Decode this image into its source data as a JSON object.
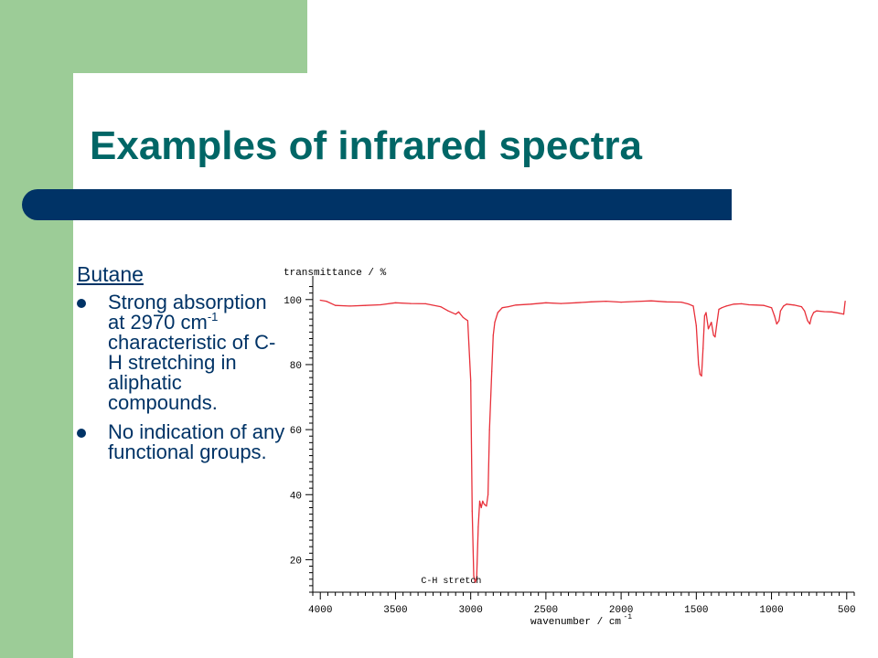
{
  "slide": {
    "title": "Examples of infrared spectra"
  },
  "left": {
    "subhead": "Butane",
    "bullets": [
      {
        "pre": "Strong absorption at 2970 cm",
        "sup": "-1",
        "post": " characteristic of C-H stretching in aliphatic compounds."
      },
      {
        "pre": "No indication of any functional groups.",
        "sup": "",
        "post": ""
      }
    ]
  },
  "colors": {
    "sidebar": "#9CCC97",
    "title": "#006666",
    "rule": "#003366",
    "text": "#003366",
    "trace": "#E8303A"
  },
  "chart_data": {
    "type": "line",
    "title": "",
    "ylabel": "transmittance / %",
    "xlabel": "wavenumber / cm",
    "xlabel_sup": "-1",
    "x_reversed": true,
    "xlim": [
      4050,
      450
    ],
    "ylim": [
      10,
      105
    ],
    "xticks": [
      4000,
      3500,
      3000,
      2500,
      2000,
      1500,
      1000,
      500
    ],
    "yticks": [
      20,
      40,
      60,
      80,
      100
    ],
    "annotations": [
      {
        "text": "C-H stretch",
        "x": 3330,
        "y": 14
      }
    ],
    "series": [
      {
        "color": "#E8303A",
        "points": [
          [
            4000,
            99.8
          ],
          [
            3960,
            99.5
          ],
          [
            3900,
            98.2
          ],
          [
            3800,
            98.0
          ],
          [
            3700,
            98.2
          ],
          [
            3600,
            98.4
          ],
          [
            3500,
            99.0
          ],
          [
            3400,
            98.8
          ],
          [
            3300,
            98.7
          ],
          [
            3200,
            97.8
          ],
          [
            3150,
            96.5
          ],
          [
            3100,
            95.5
          ],
          [
            3080,
            96.2
          ],
          [
            3050,
            94.5
          ],
          [
            3020,
            93.5
          ],
          [
            3000,
            75.0
          ],
          [
            2990,
            35.0
          ],
          [
            2980,
            15.0
          ],
          [
            2970,
            13.0
          ],
          [
            2960,
            14.5
          ],
          [
            2950,
            30.0
          ],
          [
            2940,
            38.0
          ],
          [
            2930,
            36.0
          ],
          [
            2920,
            38.0
          ],
          [
            2910,
            37.0
          ],
          [
            2895,
            36.5
          ],
          [
            2885,
            40.0
          ],
          [
            2875,
            60.0
          ],
          [
            2860,
            78.0
          ],
          [
            2850,
            89.0
          ],
          [
            2840,
            93.0
          ],
          [
            2820,
            96.0
          ],
          [
            2790,
            97.5
          ],
          [
            2750,
            97.8
          ],
          [
            2700,
            98.3
          ],
          [
            2600,
            98.6
          ],
          [
            2500,
            99.0
          ],
          [
            2400,
            98.8
          ],
          [
            2300,
            99.0
          ],
          [
            2200,
            99.3
          ],
          [
            2100,
            99.5
          ],
          [
            2000,
            99.2
          ],
          [
            1900,
            99.4
          ],
          [
            1800,
            99.6
          ],
          [
            1700,
            99.3
          ],
          [
            1600,
            99.2
          ],
          [
            1550,
            98.6
          ],
          [
            1520,
            98.0
          ],
          [
            1500,
            92.0
          ],
          [
            1485,
            80.0
          ],
          [
            1475,
            77.0
          ],
          [
            1465,
            76.5
          ],
          [
            1455,
            85.0
          ],
          [
            1445,
            95.0
          ],
          [
            1435,
            96.0
          ],
          [
            1420,
            91.0
          ],
          [
            1400,
            93.0
          ],
          [
            1385,
            89.0
          ],
          [
            1375,
            88.5
          ],
          [
            1365,
            92.0
          ],
          [
            1350,
            97.0
          ],
          [
            1330,
            97.5
          ],
          [
            1300,
            98.0
          ],
          [
            1250,
            98.6
          ],
          [
            1200,
            98.7
          ],
          [
            1150,
            98.4
          ],
          [
            1100,
            98.3
          ],
          [
            1050,
            98.2
          ],
          [
            1000,
            97.5
          ],
          [
            980,
            95.0
          ],
          [
            965,
            92.5
          ],
          [
            950,
            93.5
          ],
          [
            940,
            96.5
          ],
          [
            920,
            98.0
          ],
          [
            900,
            98.6
          ],
          [
            850,
            98.3
          ],
          [
            800,
            97.8
          ],
          [
            780,
            96.5
          ],
          [
            760,
            93.5
          ],
          [
            745,
            92.5
          ],
          [
            735,
            94.5
          ],
          [
            720,
            96.0
          ],
          [
            700,
            96.5
          ],
          [
            650,
            96.3
          ],
          [
            600,
            96.2
          ],
          [
            550,
            95.8
          ],
          [
            520,
            95.5
          ],
          [
            510,
            99.5
          ]
        ]
      }
    ]
  }
}
